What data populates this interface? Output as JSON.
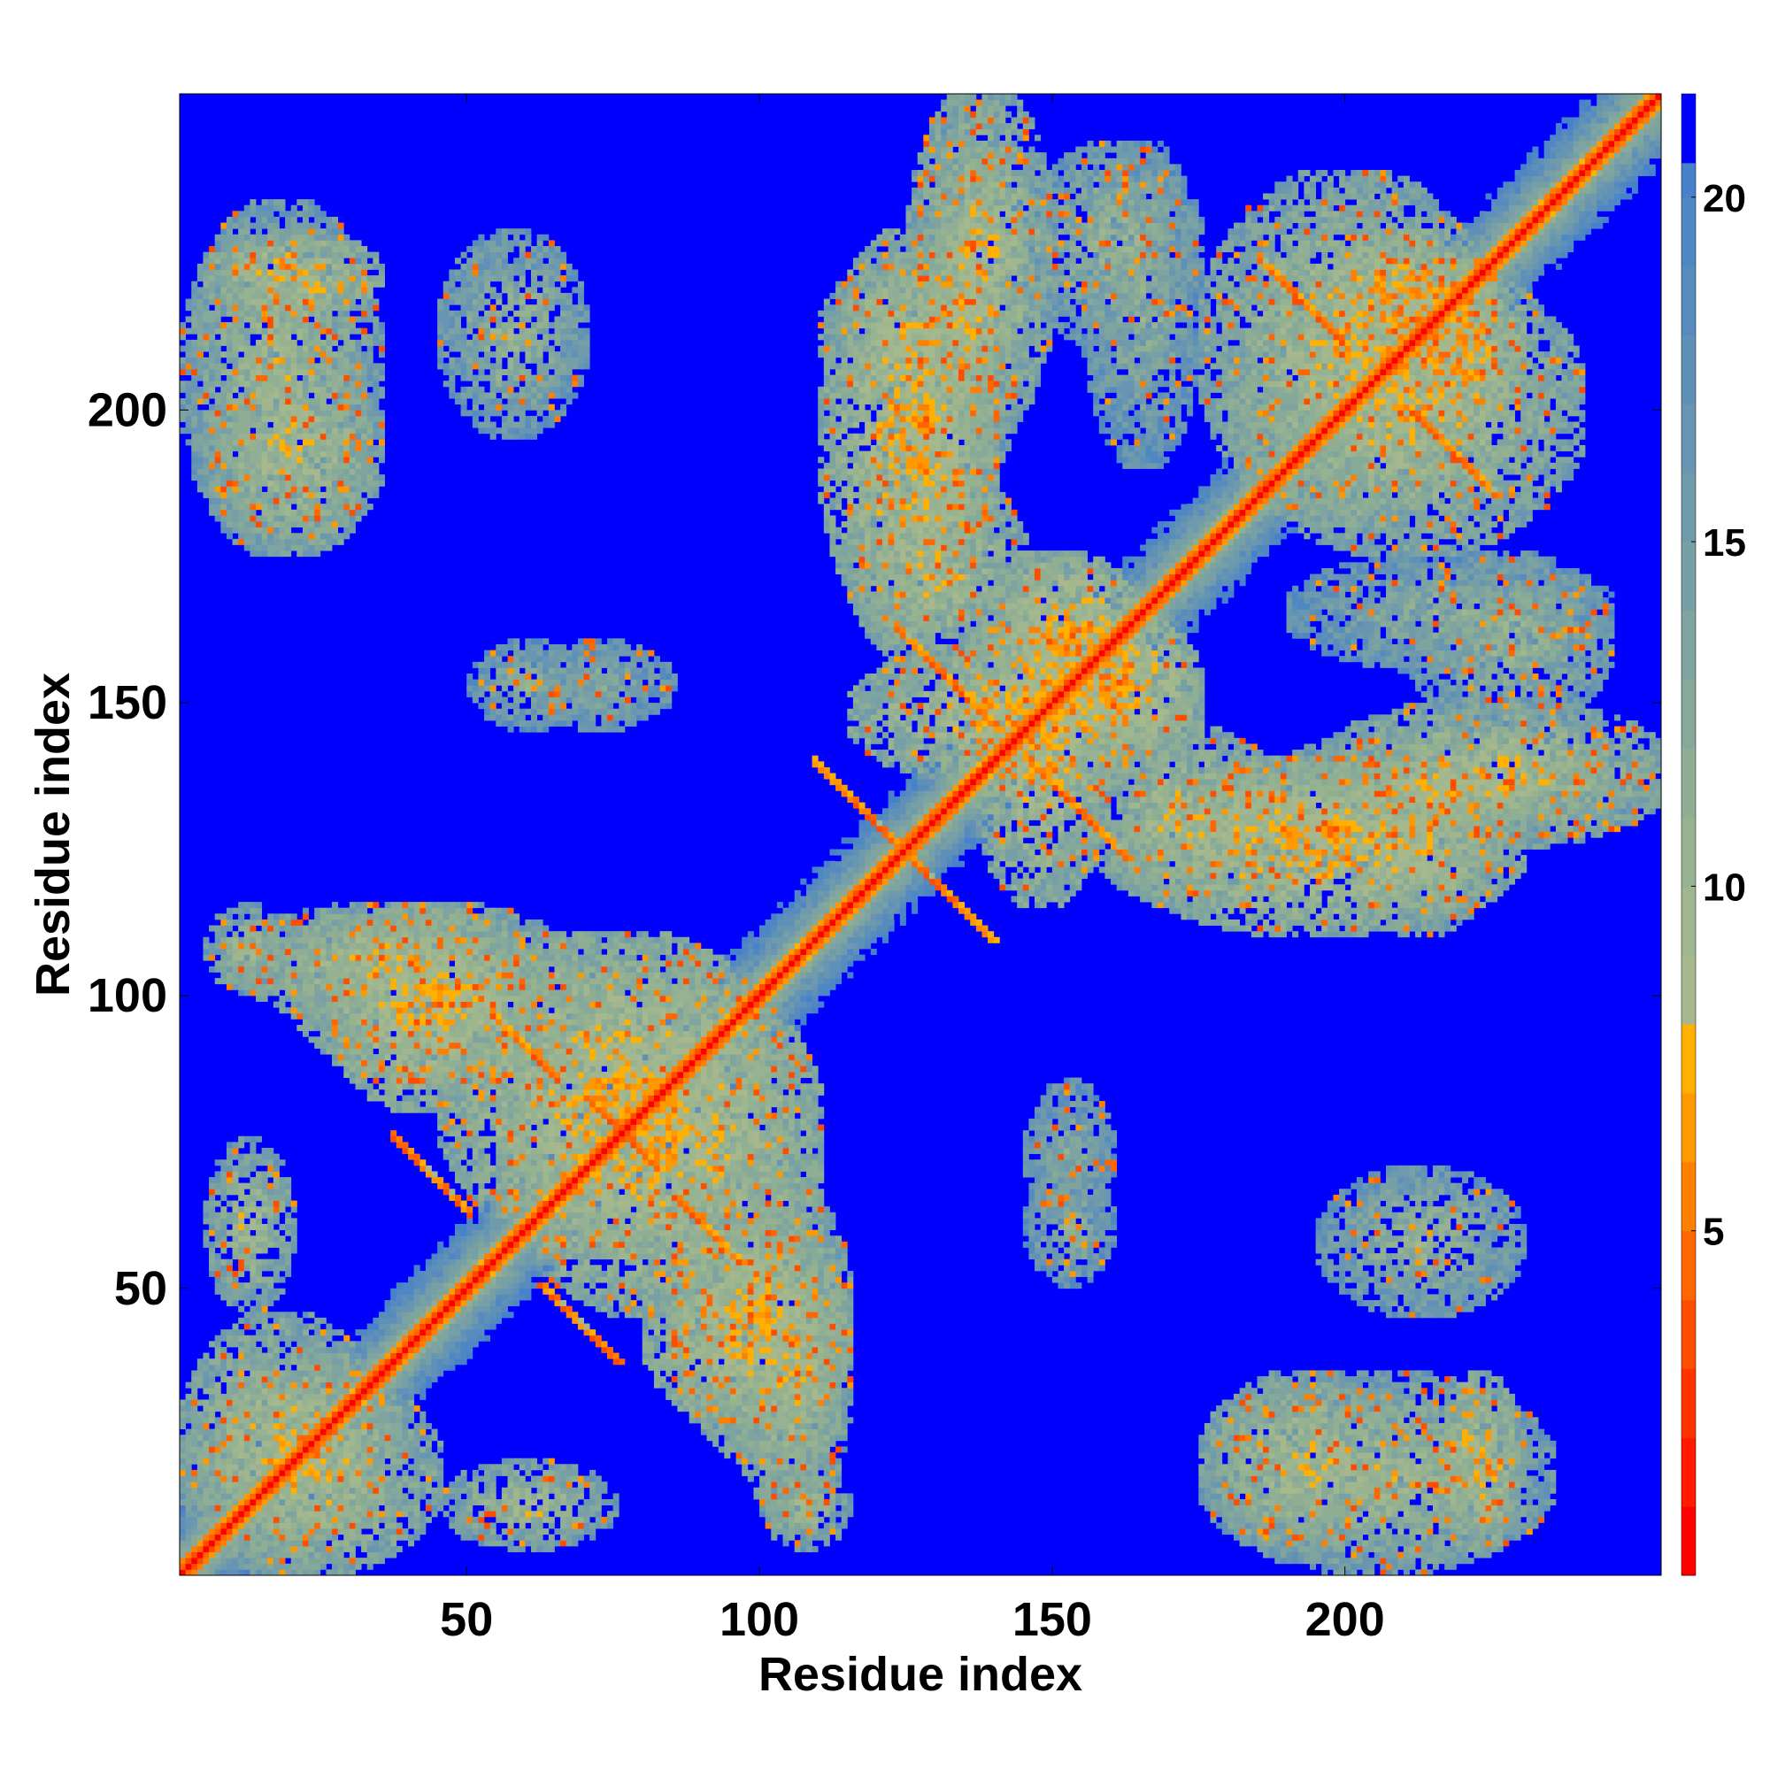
{
  "chart_data": {
    "type": "heatmap",
    "title": "",
    "xlabel": "Residue index",
    "ylabel": "Residue index",
    "xlim": [
      1,
      253
    ],
    "ylim": [
      1,
      253
    ],
    "x_ticks": [
      50,
      100,
      150,
      200
    ],
    "y_ticks": [
      50,
      100,
      150,
      200
    ],
    "colorbar": {
      "range": [
        0,
        21.5
      ],
      "ticks": [
        5,
        10,
        15,
        20
      ],
      "levels": [
        {
          "max": 1.0,
          "color": "#ff0000"
        },
        {
          "max": 2.0,
          "color": "#ff1a00"
        },
        {
          "max": 3.0,
          "color": "#ff3300"
        },
        {
          "max": 4.0,
          "color": "#ff4d00"
        },
        {
          "max": 5.0,
          "color": "#ff6600"
        },
        {
          "max": 6.0,
          "color": "#ff8000"
        },
        {
          "max": 7.0,
          "color": "#ff9900"
        },
        {
          "max": 8.0,
          "color": "#ffb000"
        },
        {
          "max": 9.0,
          "color": "#a7b88c"
        },
        {
          "max": 10.0,
          "color": "#9fb68e"
        },
        {
          "max": 11.0,
          "color": "#97b290"
        },
        {
          "max": 12.0,
          "color": "#8fae94"
        },
        {
          "max": 13.0,
          "color": "#87a99a"
        },
        {
          "max": 14.0,
          "color": "#7fa4a0"
        },
        {
          "max": 15.0,
          "color": "#779fa6"
        },
        {
          "max": 16.0,
          "color": "#6f9aac"
        },
        {
          "max": 17.0,
          "color": "#6795b2"
        },
        {
          "max": 18.0,
          "color": "#5f90b8"
        },
        {
          "max": 19.0,
          "color": "#578bbe"
        },
        {
          "max": 20.0,
          "color": "#4f86c4"
        },
        {
          "max": 20.5,
          "color": "#4781ca"
        },
        {
          "max": 21.5,
          "color": "#0000ff"
        }
      ]
    },
    "background_value": 21,
    "diagonal_bands": [
      {
        "start": 1,
        "end": 253,
        "halfwidth": 4
      }
    ],
    "contact_regions": [
      {
        "x": [
          1,
          35
        ],
        "y": [
          1,
          45
        ],
        "core": 8,
        "rim": 14
      },
      {
        "x": [
          1,
          35
        ],
        "y": [
          175,
          235
        ],
        "core": 9,
        "rim": 15
      },
      {
        "x": [
          45,
          70
        ],
        "y": [
          195,
          230
        ],
        "core": 10,
        "rim": 16
      },
      {
        "x": [
          50,
          70
        ],
        "y": [
          145,
          160
        ],
        "core": 11,
        "rim": 17
      },
      {
        "x": [
          10,
          60
        ],
        "y": [
          95,
          115
        ],
        "core": 8,
        "rim": 14
      },
      {
        "x": [
          25,
          60
        ],
        "y": [
          80,
          115
        ],
        "core": 7,
        "rim": 13
      },
      {
        "x": [
          45,
          75
        ],
        "y": [
          5,
          20
        ],
        "core": 8,
        "rim": 15
      },
      {
        "x": [
          55,
          110
        ],
        "y": [
          45,
          105
        ],
        "core": 7,
        "rim": 13
      },
      {
        "x": [
          85,
          115
        ],
        "y": [
          20,
          70
        ],
        "core": 8,
        "rim": 14
      },
      {
        "x": [
          100,
          115
        ],
        "y": [
          5,
          20
        ],
        "core": 9,
        "rim": 15
      },
      {
        "x": [
          110,
          140
        ],
        "y": [
          160,
          230
        ],
        "core": 7,
        "rim": 13
      },
      {
        "x": [
          125,
          150
        ],
        "y": [
          195,
          255
        ],
        "core": 8,
        "rim": 14
      },
      {
        "x": [
          135,
          160
        ],
        "y": [
          115,
          175
        ],
        "core": 7,
        "rim": 13
      },
      {
        "x": [
          145,
          175
        ],
        "y": [
          140,
          165
        ],
        "core": 6,
        "rim": 12
      },
      {
        "x": [
          155,
          190
        ],
        "y": [
          115,
          145
        ],
        "core": 8,
        "rim": 14
      },
      {
        "x": [
          170,
          210
        ],
        "y": [
          120,
          140
        ],
        "core": 8,
        "rim": 14
      },
      {
        "x": [
          185,
          250
        ],
        "y": [
          125,
          145
        ],
        "core": 8,
        "rim": 15
      },
      {
        "x": [
          200,
          225
        ],
        "y": [
          110,
          140
        ],
        "core": 8,
        "rim": 14
      },
      {
        "x": [
          180,
          240
        ],
        "y": [
          175,
          225
        ],
        "core": 8,
        "rim": 14
      },
      {
        "x": [
          205,
          230
        ],
        "y": [
          195,
          225
        ],
        "core": 6,
        "rim": 12
      },
      {
        "x": [
          210,
          245
        ],
        "y": [
          145,
          175
        ],
        "core": 10,
        "rim": 16
      },
      {
        "x": [
          175,
          210
        ],
        "y": [
          5,
          35
        ],
        "core": 8,
        "rim": 14
      },
      {
        "x": [
          215,
          230
        ],
        "y": [
          5,
          35
        ],
        "core": 7,
        "rim": 13
      },
      {
        "x": [
          145,
          160
        ],
        "y": [
          60,
          85
        ],
        "core": 12,
        "rim": 17
      },
      {
        "x": [
          155,
          175
        ],
        "y": [
          190,
          245
        ],
        "core": 11,
        "rim": 17
      }
    ]
  }
}
